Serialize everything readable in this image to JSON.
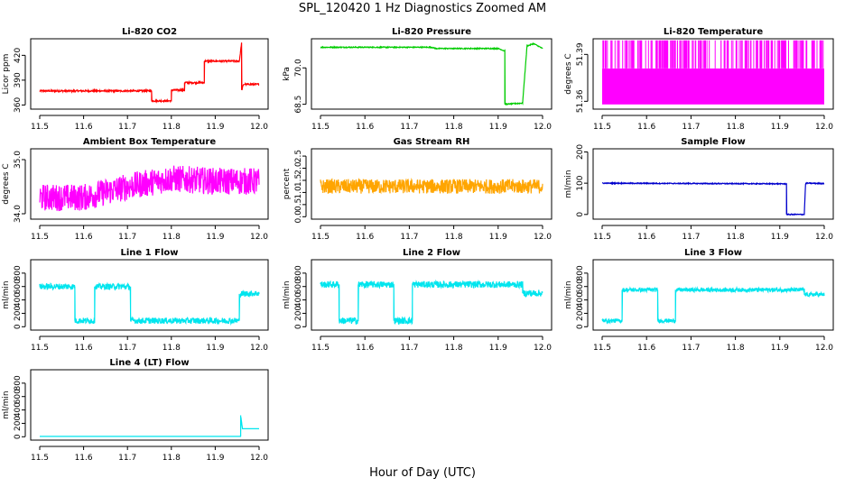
{
  "figure": {
    "title": "SPL_120420  1 Hz Diagnostics Zoomed AM",
    "xlabel": "Hour of Day (UTC)"
  },
  "chart_data": [
    {
      "type": "line",
      "title": "Li-820 CO2",
      "ylabel": "Licor ppm",
      "color": "#ff0000",
      "xlim": [
        11.5,
        12.0
      ],
      "ylim": [
        355,
        440
      ],
      "x_ticks": [
        "11.5",
        "11.6",
        "11.7",
        "11.8",
        "11.9",
        "12.0"
      ],
      "y_ticks": [
        360,
        390,
        420
      ],
      "y_tick_labels": [
        "360",
        "390",
        "420"
      ],
      "noise": 1,
      "series": [
        {
          "points": [
            [
              11.5,
              377
            ],
            [
              11.755,
              377
            ],
            [
              11.755,
              365
            ],
            [
              11.8,
              365
            ],
            [
              11.8,
              378
            ],
            [
              11.83,
              378
            ],
            [
              11.83,
              387
            ],
            [
              11.875,
              387
            ],
            [
              11.875,
              413
            ],
            [
              11.955,
              413
            ],
            [
              11.96,
              435
            ],
            [
              11.96,
              378
            ],
            [
              11.965,
              385
            ],
            [
              12.0,
              385
            ]
          ]
        }
      ]
    },
    {
      "type": "line",
      "title": "Li-820 Pressure",
      "ylabel": "kPa",
      "color": "#00cc00",
      "xlim": [
        11.5,
        12.0
      ],
      "ylim": [
        68.3,
        71.2
      ],
      "x_ticks": [
        "11.5",
        "11.6",
        "11.7",
        "11.8",
        "11.9",
        "12.0"
      ],
      "y_ticks": [
        68.5,
        70.0
      ],
      "y_tick_labels": [
        "68.5",
        "70.0"
      ],
      "noise": 0.02,
      "series": [
        {
          "points": [
            [
              11.5,
              70.85
            ],
            [
              11.75,
              70.85
            ],
            [
              11.76,
              70.8
            ],
            [
              11.9,
              70.8
            ],
            [
              11.915,
              70.7
            ],
            [
              11.915,
              68.5
            ],
            [
              11.955,
              68.55
            ],
            [
              11.965,
              70.9
            ],
            [
              11.98,
              71.0
            ],
            [
              12.0,
              70.8
            ]
          ]
        }
      ]
    },
    {
      "type": "line",
      "title": "Li-820 Temperature",
      "ylabel": "degrees C",
      "color": "#ff00ff",
      "xlim": [
        11.5,
        12.0
      ],
      "ylim": [
        51.355,
        51.4
      ],
      "x_ticks": [
        "11.5",
        "11.6",
        "11.7",
        "11.8",
        "11.9",
        "12.0"
      ],
      "y_ticks": [
        51.36,
        51.39
      ],
      "y_tick_labels": [
        "51.36",
        "51.39"
      ],
      "series": [
        {
          "points": [
            [
              11.5,
              51.358
            ],
            [
              12.0,
              51.358
            ]
          ]
        }
      ],
      "band": [
        51.358,
        51.381
      ],
      "spike_to": 51.399
    },
    {
      "type": "line",
      "title": "Ambient Box Temperature",
      "ylabel": "degrees C",
      "color": "#ff00ff",
      "xlim": [
        11.5,
        12.0
      ],
      "ylim": [
        33.9,
        35.2
      ],
      "x_ticks": [
        "11.5",
        "11.6",
        "11.7",
        "11.8",
        "11.9",
        "12.0"
      ],
      "y_ticks": [
        34.0,
        35.0
      ],
      "y_tick_labels": [
        "34.0",
        "35.0"
      ],
      "series": [
        {
          "points": [
            [
              11.5,
              34.3
            ],
            [
              11.6,
              34.3
            ],
            [
              11.7,
              34.5
            ],
            [
              11.8,
              34.65
            ],
            [
              11.9,
              34.6
            ],
            [
              12.0,
              34.6
            ]
          ]
        }
      ],
      "noise_band": 0.25
    },
    {
      "type": "line",
      "title": "Gas Stream RH",
      "ylabel": "percent",
      "color": "#ffa500",
      "xlim": [
        11.5,
        12.0
      ],
      "ylim": [
        -0.1,
        2.8
      ],
      "x_ticks": [
        "11.5",
        "11.6",
        "11.7",
        "11.8",
        "11.9",
        "12.0"
      ],
      "y_ticks": [
        0.0,
        0.5,
        1.0,
        1.5,
        2.0,
        2.5
      ],
      "y_tick_labels": [
        "0.0",
        "0.5",
        "1.0",
        "1.5",
        "2.0",
        "2.5"
      ],
      "series": [
        {
          "points": [
            [
              11.5,
              1.25
            ],
            [
              12.0,
              1.25
            ]
          ]
        }
      ],
      "noise_band": 0.3
    },
    {
      "type": "line",
      "title": "Sample Flow",
      "ylabel": "ml/min",
      "color": "#0000cc",
      "xlim": [
        11.5,
        12.0
      ],
      "ylim": [
        -15,
        210
      ],
      "x_ticks": [
        "11.5",
        "11.6",
        "11.7",
        "11.8",
        "11.9",
        "12.0"
      ],
      "y_ticks": [
        0,
        100,
        200
      ],
      "y_tick_labels": [
        "0",
        "100",
        "200"
      ],
      "noise": 1.5,
      "series": [
        {
          "points": [
            [
              11.5,
              100
            ],
            [
              11.91,
              98
            ],
            [
              11.915,
              98
            ],
            [
              11.915,
              0
            ],
            [
              11.955,
              0
            ],
            [
              11.958,
              100
            ],
            [
              12.0,
              99
            ]
          ]
        }
      ]
    },
    {
      "type": "line",
      "title": "Line 1 Flow",
      "ylabel": "ml/min",
      "color": "#00e5ee",
      "xlim": [
        11.5,
        12.0
      ],
      "ylim": [
        -50,
        1000
      ],
      "x_ticks": [
        "11.5",
        "11.6",
        "11.7",
        "11.8",
        "11.9",
        "12.0"
      ],
      "y_ticks": [
        0,
        200,
        400,
        600,
        800
      ],
      "y_tick_labels": [
        "0",
        "200",
        "400",
        "600",
        "800"
      ],
      "series": [
        {
          "points": [
            [
              11.5,
              600
            ],
            [
              11.58,
              600
            ],
            [
              11.58,
              90
            ],
            [
              11.625,
              90
            ],
            [
              11.625,
              600
            ],
            [
              11.707,
              600
            ],
            [
              11.707,
              90
            ],
            [
              11.955,
              90
            ],
            [
              11.955,
              490
            ],
            [
              12.0,
              500
            ]
          ]
        }
      ],
      "noise_band": 45
    },
    {
      "type": "line",
      "title": "Line 2 Flow",
      "ylabel": "ml/min",
      "color": "#00e5ee",
      "xlim": [
        11.5,
        12.0
      ],
      "ylim": [
        -50,
        1000
      ],
      "x_ticks": [
        "11.5",
        "11.6",
        "11.7",
        "11.8",
        "11.9",
        "12.0"
      ],
      "y_ticks": [
        0,
        200,
        400,
        600,
        800
      ],
      "y_tick_labels": [
        "0",
        "200",
        "400",
        "600",
        "800"
      ],
      "series": [
        {
          "points": [
            [
              11.5,
              630
            ],
            [
              11.542,
              630
            ],
            [
              11.542,
              90
            ],
            [
              11.585,
              90
            ],
            [
              11.585,
              630
            ],
            [
              11.665,
              630
            ],
            [
              11.665,
              90
            ],
            [
              11.707,
              90
            ],
            [
              11.707,
              630
            ],
            [
              11.955,
              630
            ],
            [
              11.955,
              500
            ],
            [
              12.0,
              500
            ]
          ]
        }
      ],
      "noise_band": 50
    },
    {
      "type": "line",
      "title": "Line 3 Flow",
      "ylabel": "ml/min",
      "color": "#00e5ee",
      "xlim": [
        11.5,
        12.0
      ],
      "ylim": [
        -50,
        1000
      ],
      "x_ticks": [
        "11.5",
        "11.6",
        "11.7",
        "11.8",
        "11.9",
        "12.0"
      ],
      "y_ticks": [
        0,
        200,
        400,
        600,
        800
      ],
      "y_tick_labels": [
        "0",
        "200",
        "400",
        "600",
        "800"
      ],
      "series": [
        {
          "points": [
            [
              11.5,
              90
            ],
            [
              11.545,
              90
            ],
            [
              11.545,
              550
            ],
            [
              11.625,
              550
            ],
            [
              11.625,
              90
            ],
            [
              11.665,
              90
            ],
            [
              11.665,
              550
            ],
            [
              11.955,
              550
            ],
            [
              11.955,
              480
            ],
            [
              12.0,
              480
            ]
          ]
        }
      ],
      "noise_band": 30
    },
    {
      "type": "line",
      "title": "Line 4 (LT) Flow",
      "ylabel": "ml/min",
      "color": "#00e5ee",
      "xlim": [
        11.5,
        12.0
      ],
      "ylim": [
        -50,
        1000
      ],
      "x_ticks": [
        "11.5",
        "11.6",
        "11.7",
        "11.8",
        "11.9",
        "12.0"
      ],
      "y_ticks": [
        0,
        200,
        400,
        600,
        800
      ],
      "y_tick_labels": [
        "0",
        "200",
        "400",
        "600",
        "800"
      ],
      "series": [
        {
          "points": [
            [
              11.5,
              5
            ],
            [
              11.958,
              5
            ],
            [
              11.958,
              320
            ],
            [
              11.962,
              120
            ],
            [
              12.0,
              120
            ]
          ]
        }
      ]
    }
  ]
}
